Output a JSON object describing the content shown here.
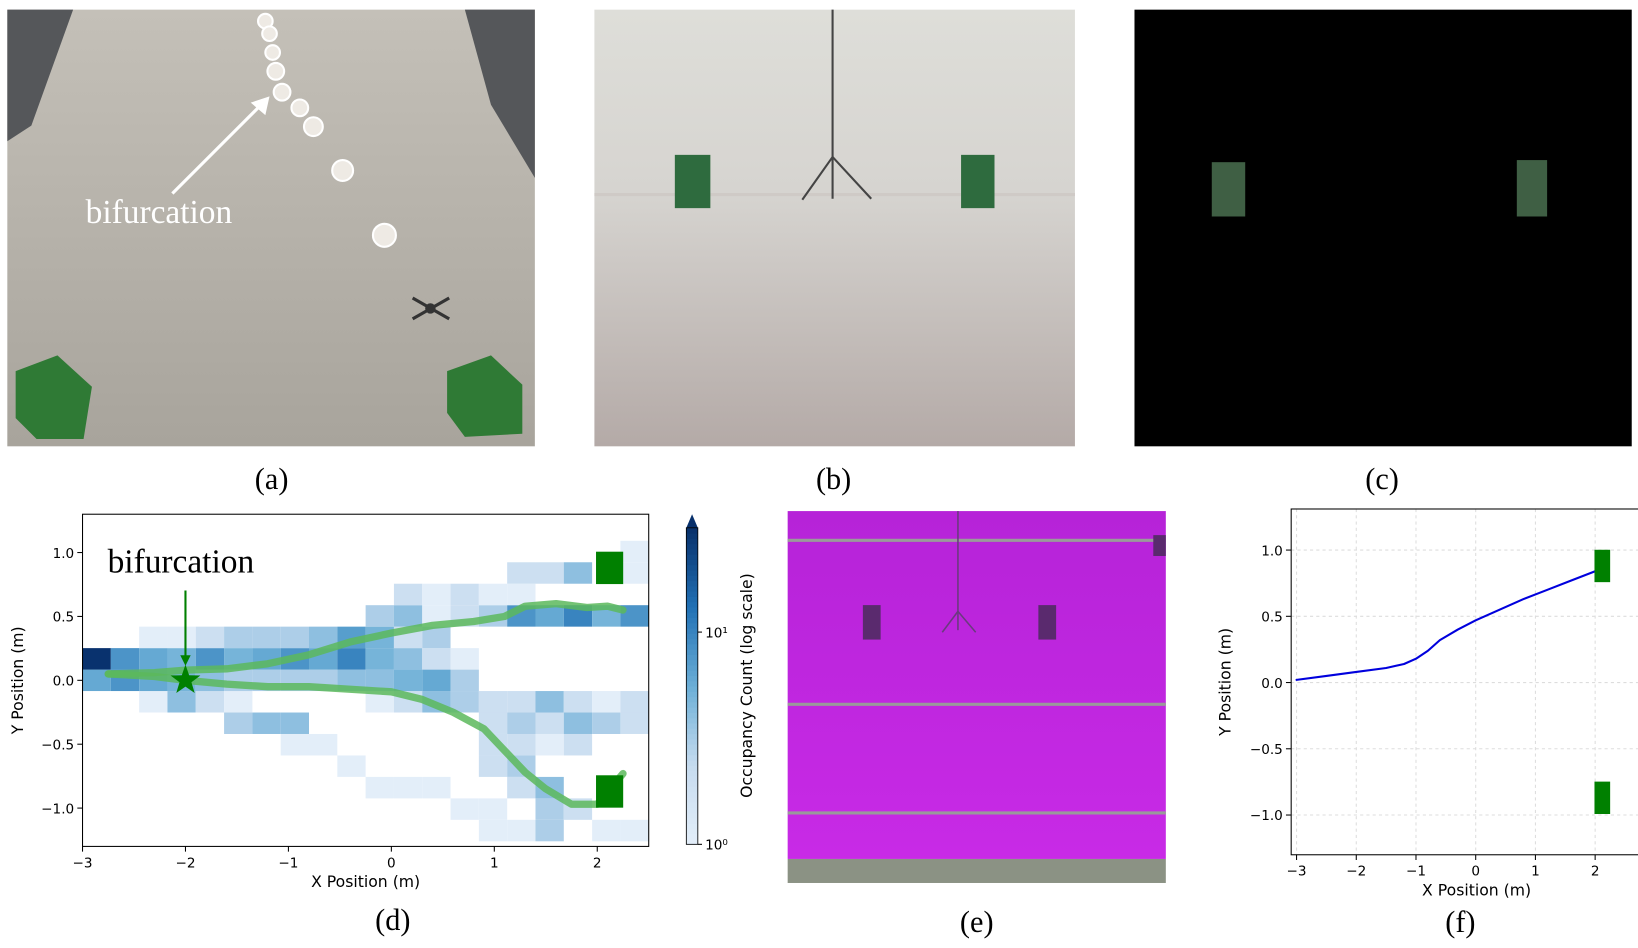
{
  "panels": {
    "a": {
      "caption": "(a)",
      "annotation": "bifurcation"
    },
    "b": {
      "caption": "(b)"
    },
    "c": {
      "caption": "(c)"
    },
    "e": {
      "caption": "(e)"
    }
  },
  "chart_data": [
    {
      "type": "heatmap",
      "caption": "(d)",
      "xlabel": "X Position (m)",
      "ylabel": "Y Position (m)",
      "xlim": [
        -3,
        2.5
      ],
      "ylim": [
        -1.3,
        1.3
      ],
      "xticks": [
        {
          "value": -3,
          "label": "−3"
        },
        {
          "value": -2,
          "label": "−2"
        },
        {
          "value": -1,
          "label": "−1"
        },
        0,
        1,
        2
      ],
      "yticks": [
        {
          "value": -1,
          "label": "−1.0"
        },
        {
          "value": -0.5,
          "label": "−0.5"
        },
        {
          "value": 0,
          "label": "0.0"
        },
        {
          "value": 0.5,
          "label": "0.5"
        },
        {
          "value": 1,
          "label": "1.0"
        }
      ],
      "x_bins": [
        -3,
        -2.725,
        -2.45,
        -2.175,
        -1.9,
        -1.625,
        -1.35,
        -1.075,
        -0.8,
        -0.525,
        -0.25,
        0.025,
        0.3,
        0.575,
        0.85,
        1.125,
        1.4,
        1.675,
        1.95,
        2.225,
        2.5
      ],
      "y_bins": [
        -1.26,
        -1.092,
        -0.924,
        -0.756,
        -0.588,
        -0.42,
        -0.252,
        -0.084,
        0.084,
        0.252,
        0.42,
        0.588,
        0.756,
        0.924,
        1.092
      ],
      "values": [
        [
          null,
          null,
          null,
          null,
          null,
          null,
          null,
          null,
          null,
          null,
          null,
          null,
          null,
          null,
          1,
          1,
          3,
          null,
          1,
          1
        ],
        [
          null,
          null,
          null,
          null,
          null,
          null,
          null,
          null,
          null,
          null,
          null,
          null,
          null,
          1,
          1,
          null,
          3,
          2,
          null,
          null
        ],
        [
          null,
          null,
          null,
          null,
          null,
          null,
          null,
          null,
          null,
          null,
          1,
          1,
          1,
          null,
          null,
          2,
          4,
          null,
          null,
          null
        ],
        [
          null,
          null,
          null,
          null,
          null,
          null,
          null,
          null,
          null,
          1,
          null,
          null,
          null,
          null,
          2,
          3,
          null,
          null,
          null,
          null
        ],
        [
          null,
          null,
          null,
          null,
          null,
          null,
          null,
          1,
          1,
          null,
          null,
          null,
          null,
          null,
          2,
          2,
          1,
          2,
          null,
          null
        ],
        [
          null,
          null,
          null,
          null,
          null,
          3,
          4,
          4,
          null,
          null,
          null,
          null,
          null,
          null,
          2,
          3,
          2,
          4,
          3,
          2
        ],
        [
          null,
          null,
          1,
          4,
          2,
          1,
          null,
          null,
          null,
          null,
          1,
          2,
          4,
          3,
          2,
          2,
          4,
          2,
          1,
          2
        ],
        [
          6,
          8,
          6,
          5,
          4,
          3,
          3,
          3,
          3,
          4,
          4,
          5,
          6,
          3,
          null,
          null,
          null,
          null,
          null,
          null
        ],
        [
          30,
          8,
          6,
          5,
          8,
          5,
          6,
          8,
          6,
          10,
          5,
          4,
          2,
          1,
          null,
          null,
          null,
          null,
          null,
          null
        ],
        [
          null,
          null,
          1,
          1,
          2,
          3,
          3,
          3,
          4,
          7,
          5,
          2,
          3,
          null,
          null,
          null,
          null,
          null,
          null,
          null
        ],
        [
          null,
          null,
          null,
          null,
          null,
          null,
          null,
          null,
          null,
          null,
          3,
          4,
          1,
          2,
          3,
          8,
          6,
          10,
          5,
          8
        ],
        [
          null,
          null,
          null,
          null,
          null,
          null,
          null,
          null,
          null,
          null,
          null,
          2,
          1,
          2,
          1,
          1,
          null,
          null,
          null,
          null
        ],
        [
          null,
          null,
          null,
          null,
          null,
          null,
          null,
          null,
          null,
          null,
          null,
          null,
          null,
          null,
          null,
          2,
          2,
          4,
          null,
          1
        ],
        [
          null,
          null,
          null,
          null,
          null,
          null,
          null,
          null,
          null,
          null,
          null,
          null,
          null,
          null,
          null,
          null,
          null,
          null,
          null,
          1
        ]
      ],
      "colormap": [
        "#e3eef9",
        "#c6dbef",
        "#6baed6",
        "#2171b5",
        "#08306b"
      ],
      "colorbar": {
        "label": "Occupancy Count (log scale)",
        "log": true,
        "lim": [
          1,
          31
        ],
        "ticks": [
          {
            "value": 1,
            "label": "10⁰"
          },
          {
            "value": 10,
            "label": "10¹"
          }
        ]
      },
      "series": [
        {
          "color": "#5cb85c",
          "x": [
            -2.75,
            -2.3,
            -2,
            -1.6,
            -1.2,
            -0.8,
            -0.4,
            0,
            0.4,
            0.8,
            1.1,
            1.3,
            1.6,
            1.9,
            2.1,
            2.25
          ],
          "values": [
            0.05,
            0.06,
            0.08,
            0.09,
            0.13,
            0.2,
            0.3,
            0.37,
            0.43,
            0.46,
            0.5,
            0.58,
            0.6,
            0.57,
            0.58,
            0.55
          ]
        },
        {
          "color": "#5cb85c",
          "x": [
            -2.75,
            -2.3,
            -2,
            -1.6,
            -1.2,
            -0.8,
            -0.4,
            0,
            0.3,
            0.6,
            0.9,
            1.1,
            1.3,
            1.5,
            1.75,
            2,
            2.25
          ],
          "values": [
            0.05,
            0.03,
            0,
            -0.03,
            -0.05,
            -0.05,
            -0.07,
            -0.09,
            -0.15,
            -0.25,
            -0.38,
            -0.55,
            -0.72,
            -0.85,
            -0.97,
            -0.97,
            -0.73
          ]
        }
      ],
      "obstacles": {
        "color": "#008000",
        "x": [
          2.12,
          2.12
        ],
        "y": [
          0.88,
          -0.87
        ]
      },
      "marker": {
        "color": "#008000",
        "x": -2,
        "y": 0
      },
      "annotation": "bifurcation"
    },
    {
      "type": "line",
      "caption": "(f)",
      "xlabel": "X Position (m)",
      "ylabel": "Y Position (m)",
      "grid": true,
      "xlim": [
        -3.09,
        3.12
      ],
      "ylim": [
        -1.3,
        1.31
      ],
      "xticks": [
        {
          "value": -3,
          "label": "−3"
        },
        {
          "value": -2,
          "label": "−2"
        },
        {
          "value": -1,
          "label": "−1"
        },
        0,
        1,
        2
      ],
      "yticks": [
        {
          "value": -1,
          "label": "−1.0"
        },
        {
          "value": -0.5,
          "label": "−0.5"
        },
        {
          "value": 0,
          "label": "0.0"
        },
        {
          "value": 0.5,
          "label": "0.5"
        },
        {
          "value": 1,
          "label": "1.0"
        }
      ],
      "series": [
        {
          "color": "#0000dd",
          "x": [
            -3,
            -2.5,
            -2,
            -1.5,
            -1.2,
            -1,
            -0.8,
            -0.6,
            -0.3,
            0,
            0.4,
            0.8,
            1.2,
            1.6,
            2
          ],
          "values": [
            0.02,
            0.05,
            0.08,
            0.11,
            0.14,
            0.18,
            0.24,
            0.32,
            0.4,
            0.47,
            0.55,
            0.63,
            0.7,
            0.77,
            0.84
          ]
        }
      ],
      "obstacles": {
        "color": "#008000",
        "x": [
          2.12,
          2.12
        ],
        "y": [
          0.88,
          -0.87
        ]
      }
    }
  ]
}
